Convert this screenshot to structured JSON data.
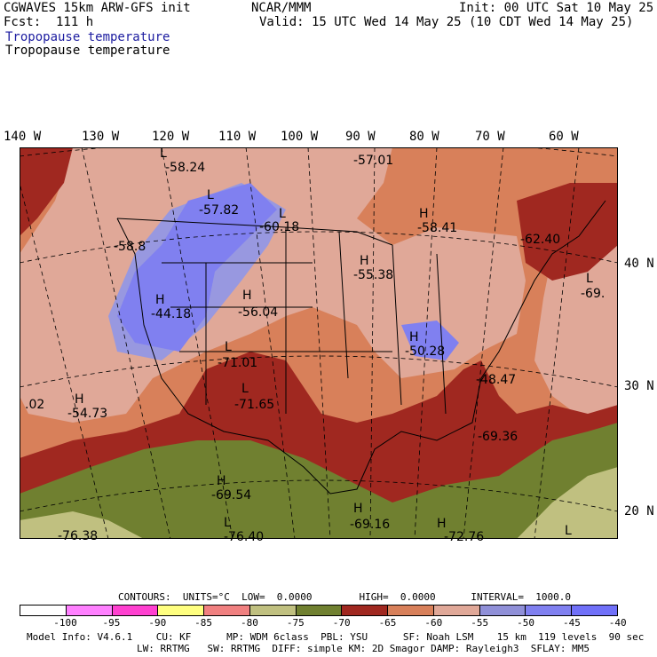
{
  "header": {
    "model": "CGWAVES 15km ARW-GFS init",
    "org": "NCAR/MMM",
    "init": "Init: 00 UTC Sat 10 May 25",
    "fcst": "Fcst:  111 h",
    "valid": "Valid: 15 UTC Wed 14 May 25 (10 CDT Wed 14 May 25)",
    "field_title": "Tropopause temperature",
    "field_subtitle": "Tropopause temperature"
  },
  "longitudes": [
    "140 W",
    "130 W",
    "120 W",
    "110 W",
    "100 W",
    "90 W",
    "80 W",
    "70 W",
    "60 W"
  ],
  "latitudes": [
    "40 N",
    "30 N",
    "20 N"
  ],
  "centers": [
    {
      "type": "L",
      "value": "-58.24"
    },
    {
      "type": "L",
      "value": "-57.01"
    },
    {
      "type": "L",
      "value": "-57.82"
    },
    {
      "type": "L",
      "value": "-60.18"
    },
    {
      "type": "H",
      "value": "-58.41"
    },
    {
      "type": "L",
      "value": "-62.40"
    },
    {
      "type": "L",
      "value": "-58.8"
    },
    {
      "type": "H",
      "value": "-55.38"
    },
    {
      "type": "L",
      "value": "-69."
    },
    {
      "type": "H",
      "value": "-44.18"
    },
    {
      "type": "H",
      "value": "-56.04"
    },
    {
      "type": "H",
      "value": "-50.28"
    },
    {
      "type": "L",
      "value": "-71.01"
    },
    {
      "type": "H",
      "value": "-48.47"
    },
    {
      "type": "L",
      "value": "-71.65"
    },
    {
      "type": "H",
      "value": ".02"
    },
    {
      "type": "H",
      "value": "-54.73"
    },
    {
      "type": "L",
      "value": "-69.36"
    },
    {
      "type": "H",
      "value": "-69.54"
    },
    {
      "type": "H",
      "value": "-69.16"
    },
    {
      "type": "L",
      "value": "-76.38"
    },
    {
      "type": "L",
      "value": "-76.40"
    },
    {
      "type": "H",
      "value": "-72.76"
    },
    {
      "type": "L",
      "value": ""
    }
  ],
  "contours_line": "CONTOURS:  UNITS=°C  LOW=  0.0000        HIGH=  0.0000      INTERVAL=  1000.0",
  "legend": {
    "colors": [
      "#ffffff",
      "#ff80ff",
      "#ff40d0",
      "#ffff80",
      "#f08080",
      "#c0c080",
      "#708030",
      "#a02820",
      "#d8805a",
      "#e0a898",
      "#9090d8",
      "#8080f0",
      "#7070f8"
    ],
    "labels": [
      "-100",
      "-95",
      "-90",
      "-85",
      "-80",
      "-75",
      "-70",
      "-65",
      "-60",
      "-55",
      "-50",
      "-45",
      "-40",
      "°C"
    ]
  },
  "footer": {
    "line1": "Model Info: V4.6.1    CU: KF      MP: WDM 6class  PBL: YSU      SF: Noah LSM    15 km  119 levels  90 sec",
    "line2": "LW: RRTMG   SW: RRTMG  DIFF: simple KM: 2D Smagor DAMP: Rayleigh3  SFLAY: MM5"
  }
}
